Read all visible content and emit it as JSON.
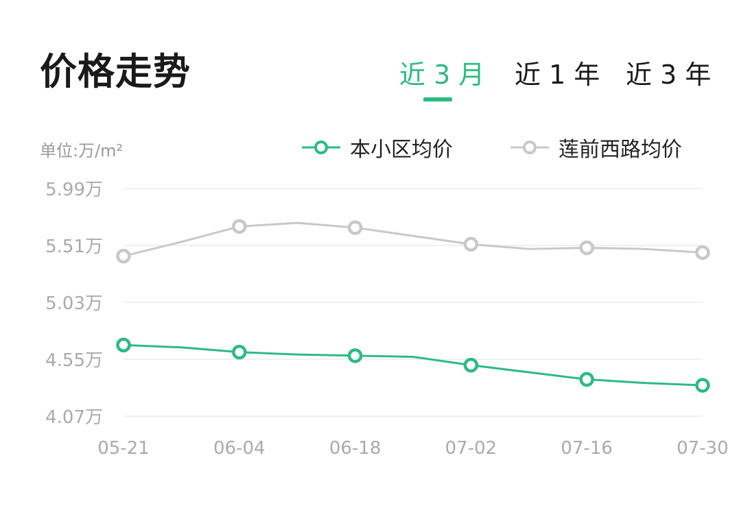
{
  "header": {
    "title": "价格走势",
    "tabs": [
      {
        "label": "近 3 月",
        "active": true
      },
      {
        "label": "近 1 年",
        "active": false
      },
      {
        "label": "近 3 年",
        "active": false
      }
    ]
  },
  "colors": {
    "accent": "#2dba82",
    "secondary": "#c8c8c8",
    "grid": "#ececec",
    "axis_text": "#aaaaaa"
  },
  "chart_data": {
    "type": "line",
    "unit_label": "单位:万/m²",
    "y_ticks": [
      "5.99万",
      "5.51万",
      "5.03万",
      "4.55万",
      "4.07万"
    ],
    "y_tick_values": [
      5.99,
      5.51,
      5.03,
      4.55,
      4.07
    ],
    "ylim": [
      4.07,
      5.99
    ],
    "x_tick_labels": [
      "05-21",
      "06-04",
      "06-18",
      "07-02",
      "07-16",
      "07-30"
    ],
    "x": [
      "05-21",
      "05-28",
      "06-04",
      "06-11",
      "06-18",
      "06-25",
      "07-02",
      "07-09",
      "07-16",
      "07-23",
      "07-30"
    ],
    "grid": true,
    "legend": "top-right",
    "series": [
      {
        "name": "本小区均价",
        "color": "#2dba82",
        "marker_x": [
          "05-21",
          "06-04",
          "06-18",
          "07-02",
          "07-16",
          "07-30"
        ],
        "values": [
          4.67,
          4.65,
          4.61,
          4.59,
          4.58,
          4.57,
          4.5,
          4.44,
          4.38,
          4.35,
          4.33
        ]
      },
      {
        "name": "莲前西路均价",
        "color": "#c8c8c8",
        "marker_x": [
          "05-21",
          "06-04",
          "06-18",
          "07-02",
          "07-16",
          "07-30"
        ],
        "values": [
          5.42,
          5.54,
          5.67,
          5.7,
          5.66,
          5.59,
          5.52,
          5.48,
          5.49,
          5.48,
          5.45
        ]
      }
    ]
  }
}
